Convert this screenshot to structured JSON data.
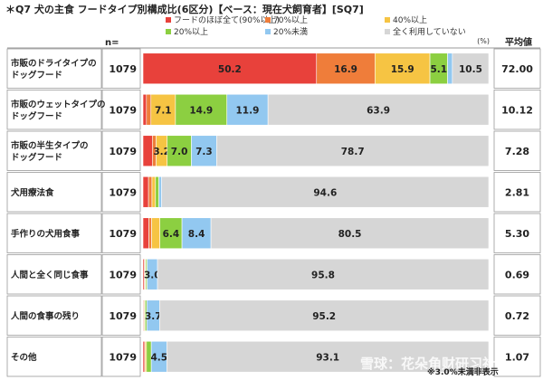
{
  "chart_data": {
    "type": "bar",
    "orientation": "horizontal",
    "stacked": true,
    "title": "＊Q7 犬の主食 フードタイプ別構成比(6区分)【ベース：現在犬飼育者】[SQ7]",
    "n_header": "n=",
    "unit_label": "(%)",
    "avg_header": "平均値",
    "xlim": [
      0,
      100
    ],
    "legend_position": "top",
    "series": [
      {
        "name": "フードのほぼ全て(90%以上)",
        "color": "#e8413b"
      },
      {
        "name": "70%以上",
        "color": "#ef7d3a"
      },
      {
        "name": "40%以上",
        "color": "#f6c443"
      },
      {
        "name": "20%以上",
        "color": "#8ccf41"
      },
      {
        "name": "20%未満",
        "color": "#92c8f0"
      },
      {
        "name": "全く利用していない",
        "color": "#d6d6d6"
      }
    ],
    "categories": [
      {
        "label": [
          "市販のドライタイプの",
          "ドッグフード"
        ],
        "n": "1079",
        "avg": "72.00",
        "values": [
          50.2,
          16.9,
          15.9,
          5.1,
          1.4,
          10.5
        ],
        "labels": [
          "50.2",
          "16.9",
          "15.9",
          "5.1",
          "",
          "10.5"
        ]
      },
      {
        "label": [
          "市販のウェットタイプの",
          "ドッグフード"
        ],
        "n": "1079",
        "avg": "10.12",
        "values": [
          1.0,
          1.3,
          7.1,
          14.9,
          11.9,
          63.9
        ],
        "labels": [
          "",
          "",
          "7.1",
          "14.9",
          "11.9",
          "63.9"
        ]
      },
      {
        "label": [
          "市販の半生タイプの",
          "ドッグフード"
        ],
        "n": "1079",
        "avg": "7.28",
        "values": [
          2.7,
          1.1,
          3.2,
          7.0,
          7.3,
          78.7
        ],
        "labels": [
          "",
          "",
          "3.2",
          "7.0",
          "7.3",
          "78.7"
        ]
      },
      {
        "label": [
          "犬用療法食"
        ],
        "n": "1079",
        "avg": "2.81",
        "values": [
          1.6,
          1.0,
          1.0,
          1.0,
          0.8,
          94.6
        ],
        "labels": [
          "",
          "",
          "",
          "",
          "",
          "94.6"
        ]
      },
      {
        "label": [
          "手作りの犬用食事"
        ],
        "n": "1079",
        "avg": "5.30",
        "values": [
          1.7,
          0.8,
          2.4,
          6.4,
          8.4,
          80.5
        ],
        "labels": [
          "",
          "",
          "",
          "6.4",
          "8.4",
          "80.5"
        ]
      },
      {
        "label": [
          "人間と全く同じ食事"
        ],
        "n": "1079",
        "avg": "0.69",
        "values": [
          0.4,
          0.2,
          0.2,
          0.4,
          3.0,
          95.8
        ],
        "labels": [
          "",
          "",
          "",
          "",
          "3.0",
          "95.8"
        ]
      },
      {
        "label": [
          "人間の食事の残り"
        ],
        "n": "1079",
        "avg": "0.72",
        "values": [
          0.2,
          0.2,
          0.2,
          0.5,
          3.7,
          95.2
        ],
        "labels": [
          "",
          "",
          "",
          "",
          "3.7",
          "95.2"
        ]
      },
      {
        "label": [
          "その他"
        ],
        "n": "1079",
        "avg": "1.07",
        "values": [
          0.5,
          0.1,
          0.4,
          1.4,
          4.5,
          93.1
        ],
        "labels": [
          "",
          "",
          "",
          "",
          "4.5",
          "93.1"
        ]
      }
    ],
    "footnote": "※3.0%未満非表示",
    "watermark": "雪球：花朵角财研习社"
  }
}
